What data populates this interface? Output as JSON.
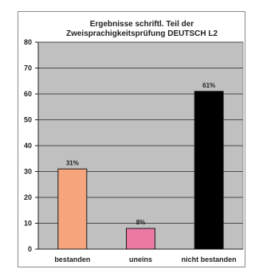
{
  "chart_data": {
    "type": "bar",
    "title_lines": [
      "Ergebnisse schriftl. Teil der",
      "Zweisprachigkeitsprüfung DEUTSCH L2"
    ],
    "categories": [
      "bestanden",
      "uneins",
      "nicht bestanden"
    ],
    "values": [
      31,
      8,
      61
    ],
    "data_labels": [
      "31%",
      "8%",
      "61%"
    ],
    "colors": [
      "#f6a57c",
      "#ea7aa3",
      "#000000"
    ],
    "ylim": [
      0,
      80
    ],
    "yticks": [
      0,
      10,
      20,
      30,
      40,
      50,
      60,
      70,
      80
    ],
    "grid": true,
    "plot_background": "#c0c0c0"
  }
}
